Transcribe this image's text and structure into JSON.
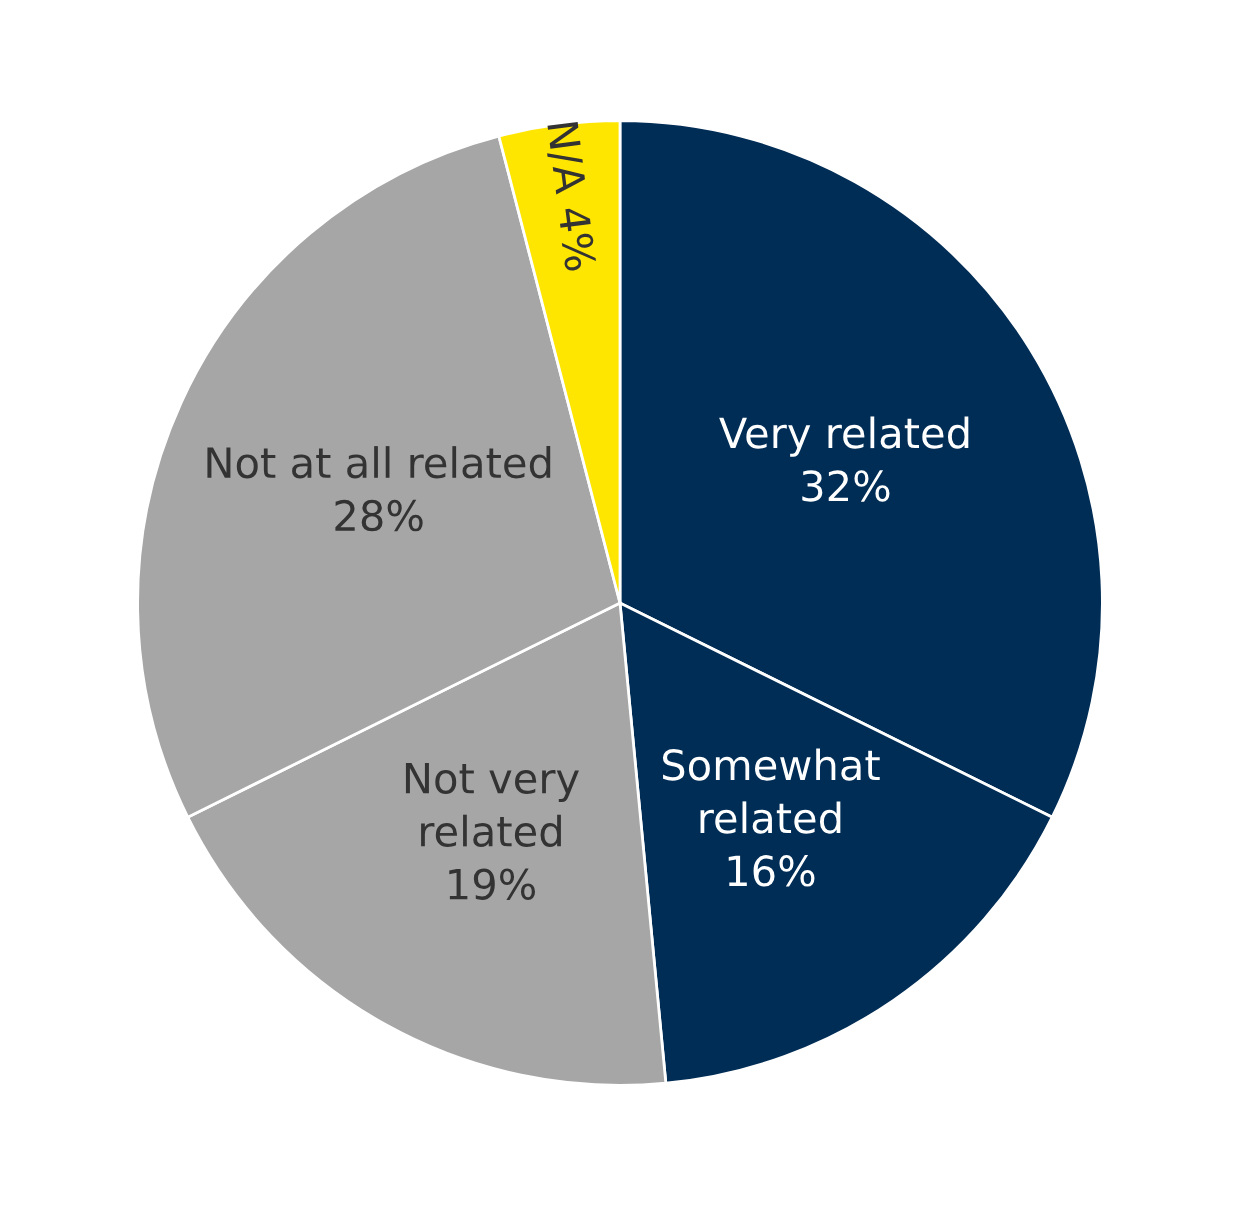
{
  "chart_data": {
    "type": "pie",
    "categories": [
      "Very related",
      "Somewhat\nrelated",
      "Not very\nrelated",
      "Not at all related",
      "N/A"
    ],
    "values": [
      32,
      16,
      19,
      28,
      4
    ],
    "value_labels": [
      "32%",
      "16%",
      "19%",
      "28%",
      "4%"
    ],
    "colors": [
      "#002d56",
      "#002d56",
      "#a6a6a6",
      "#a6a6a6",
      "#ffe600"
    ]
  }
}
